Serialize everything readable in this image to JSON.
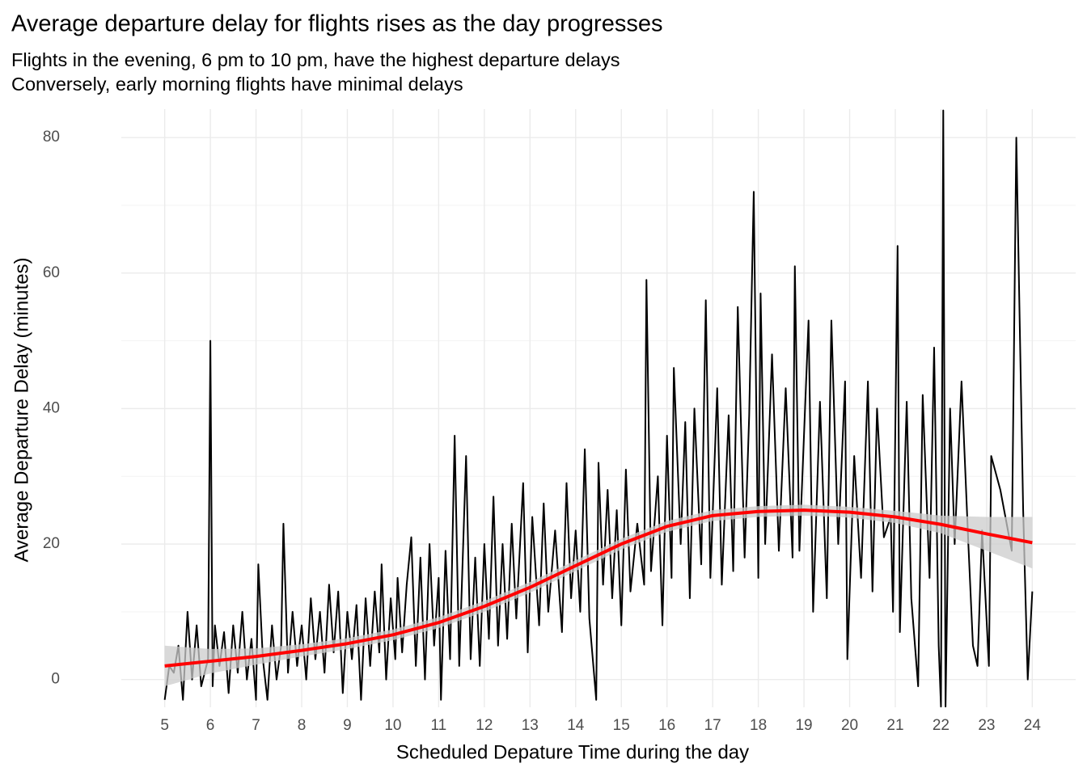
{
  "chart_data": {
    "type": "line",
    "title": "Average departure delay for flights rises as the day progresses",
    "subtitle": [
      "Flights in the evening, 6 pm to 10 pm, have the highest departure delays",
      "Conversely, early morning flights have minimal delays"
    ],
    "x_label": "Scheduled Depature Time during the day",
    "y_label": "Average Departure Delay (minutes)",
    "color": "#000000",
    "x": [
      5.0,
      5.1,
      5.2,
      5.3,
      5.4,
      5.5,
      5.6,
      5.7,
      5.8,
      5.95,
      6.0,
      6.05,
      6.1,
      6.2,
      6.3,
      6.4,
      6.5,
      6.6,
      6.7,
      6.8,
      6.9,
      7.0,
      7.05,
      7.15,
      7.25,
      7.35,
      7.45,
      7.55,
      7.6,
      7.7,
      7.8,
      7.9,
      8.0,
      8.1,
      8.2,
      8.3,
      8.4,
      8.5,
      8.6,
      8.7,
      8.8,
      8.9,
      9.0,
      9.1,
      9.2,
      9.3,
      9.4,
      9.5,
      9.6,
      9.7,
      9.75,
      9.85,
      9.95,
      10.05,
      10.1,
      10.2,
      10.3,
      10.4,
      10.5,
      10.6,
      10.7,
      10.8,
      10.9,
      11.0,
      11.05,
      11.15,
      11.25,
      11.35,
      11.45,
      11.6,
      11.7,
      11.8,
      11.9,
      12.0,
      12.1,
      12.2,
      12.3,
      12.4,
      12.5,
      12.6,
      12.7,
      12.85,
      12.95,
      13.05,
      13.2,
      13.3,
      13.4,
      13.55,
      13.7,
      13.8,
      13.9,
      14.0,
      14.1,
      14.2,
      14.3,
      14.45,
      14.5,
      14.6,
      14.7,
      14.8,
      14.9,
      15.0,
      15.1,
      15.2,
      15.35,
      15.5,
      15.55,
      15.65,
      15.8,
      15.9,
      16.0,
      16.1,
      16.15,
      16.3,
      16.4,
      16.5,
      16.6,
      16.75,
      16.85,
      16.95,
      17.1,
      17.2,
      17.35,
      17.45,
      17.55,
      17.7,
      17.8,
      17.9,
      18.0,
      18.05,
      18.15,
      18.3,
      18.45,
      18.6,
      18.75,
      18.8,
      18.9,
      19.1,
      19.2,
      19.35,
      19.5,
      19.6,
      19.75,
      19.9,
      19.95,
      20.1,
      20.25,
      20.4,
      20.5,
      20.6,
      20.75,
      20.9,
      20.95,
      21.05,
      21.1,
      21.25,
      21.35,
      21.5,
      21.6,
      21.75,
      21.85,
      21.95,
      22.0,
      22.05,
      22.1,
      22.2,
      22.3,
      22.45,
      22.6,
      22.7,
      22.8,
      22.9,
      23.05,
      23.1,
      23.3,
      23.55,
      23.65,
      23.8,
      23.9,
      24.0
    ],
    "values": [
      -3,
      2,
      1,
      5,
      -3,
      10,
      0,
      8,
      -1,
      3,
      50,
      -1,
      8,
      2,
      7,
      -2,
      8,
      1,
      10,
      0,
      6,
      -3,
      17,
      3,
      -3,
      8,
      0,
      5,
      23,
      1,
      10,
      2,
      8,
      0,
      12,
      3,
      10,
      1,
      14,
      4,
      13,
      -2,
      10,
      3,
      11,
      -3,
      12,
      2,
      13,
      4,
      17,
      0,
      12,
      3,
      15,
      4,
      14,
      21,
      2,
      18,
      0,
      20,
      5,
      15,
      -3,
      19,
      3,
      36,
      2,
      33,
      3,
      18,
      2,
      20,
      6,
      27,
      5,
      20,
      6,
      23,
      9,
      29,
      4,
      24,
      8,
      26,
      10,
      22,
      7,
      29,
      12,
      22,
      10,
      34,
      9,
      -3,
      32,
      14,
      28,
      12,
      25,
      8,
      31,
      13,
      23,
      14,
      59,
      16,
      30,
      8,
      36,
      15,
      46,
      20,
      38,
      12,
      40,
      17,
      56,
      15,
      43,
      14,
      39,
      16,
      55,
      18,
      39,
      72,
      15,
      57,
      20,
      48,
      19,
      43,
      18,
      61,
      19,
      53,
      10,
      41,
      12,
      53,
      20,
      44,
      3,
      33,
      15,
      44,
      13,
      40,
      21,
      24,
      10,
      64,
      7,
      41,
      12,
      -1,
      42,
      15,
      49,
      5,
      -4,
      84,
      -4,
      40,
      20,
      44,
      20,
      5,
      2,
      22,
      2,
      33,
      28,
      19,
      80,
      25,
      0,
      13
    ],
    "smooth": {
      "color": "#ff0000",
      "band_color": "#cccccc",
      "x": [
        5,
        6,
        7,
        8,
        9,
        10,
        11,
        12,
        13,
        14,
        15,
        16,
        17,
        18,
        19,
        20,
        21,
        22,
        23,
        24
      ],
      "values": [
        2.0,
        2.7,
        3.4,
        4.3,
        5.3,
        6.6,
        8.4,
        10.8,
        13.6,
        16.8,
        20.0,
        22.6,
        24.2,
        24.8,
        25.0,
        24.7,
        24.0,
        22.9,
        21.5,
        20.2
      ],
      "lower": [
        -1.0,
        0.9,
        2.2,
        3.4,
        4.5,
        5.8,
        7.6,
        10.0,
        12.8,
        16.0,
        19.2,
        21.8,
        23.4,
        24.0,
        24.2,
        23.9,
        23.1,
        21.6,
        19.0,
        16.4
      ],
      "upper": [
        5.0,
        4.5,
        4.6,
        5.2,
        6.1,
        7.4,
        9.2,
        11.6,
        14.4,
        17.6,
        20.8,
        23.4,
        25.0,
        25.6,
        25.8,
        25.5,
        24.9,
        24.2,
        24.0,
        24.0
      ]
    },
    "xlim": [
      4.05,
      24.95
    ],
    "ylim": [
      -4.1,
      84.2
    ],
    "xticks": [
      5,
      6,
      7,
      8,
      9,
      10,
      11,
      12,
      13,
      14,
      15,
      16,
      17,
      18,
      19,
      20,
      21,
      22,
      23,
      24
    ],
    "yticks": [
      0,
      20,
      40,
      60,
      80
    ],
    "yminorticks": [
      10,
      30,
      50,
      70
    ],
    "grid": true
  }
}
